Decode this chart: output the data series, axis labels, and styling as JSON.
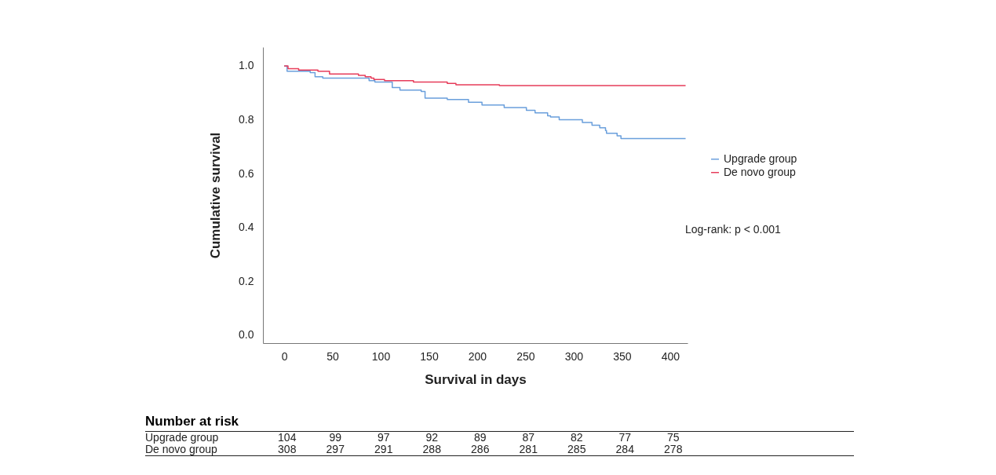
{
  "chart_data": {
    "type": "step",
    "xlabel": "Survival in days",
    "ylabel": "Cumulative survival",
    "xlim": [
      -22,
      418
    ],
    "xticks": [
      0,
      50,
      100,
      150,
      200,
      250,
      300,
      350,
      400
    ],
    "ylim": [
      -0.03,
      1.07
    ],
    "yticks": [
      {
        "value": 0,
        "label": "0.0"
      },
      {
        "value": 0.2,
        "label": "0.2"
      },
      {
        "value": 0.4,
        "label": "0.4"
      },
      {
        "value": 0.6,
        "label": "0.6"
      },
      {
        "value": 0.8,
        "label": "0.8"
      },
      {
        "value": 1,
        "label": "1.0"
      }
    ],
    "grid": false,
    "legend": "right",
    "marker": "none",
    "line_style": "solid",
    "series": [
      {
        "name": "Upgrade group",
        "color": "#6a9fdc",
        "x": [
          0,
          3,
          27,
          32,
          40,
          88,
          94,
          112,
          120,
          142,
          146,
          169,
          191,
          205,
          228,
          251,
          260,
          273,
          276,
          285,
          309,
          319,
          327,
          333,
          334,
          345,
          349,
          416
        ],
        "values": [
          1.0,
          0.98,
          0.975,
          0.96,
          0.955,
          0.945,
          0.94,
          0.92,
          0.91,
          0.905,
          0.88,
          0.875,
          0.865,
          0.855,
          0.845,
          0.835,
          0.826,
          0.815,
          0.81,
          0.8,
          0.79,
          0.78,
          0.77,
          0.76,
          0.75,
          0.74,
          0.73,
          0.73
        ]
      },
      {
        "name": "De novo group",
        "color": "#e63c5a",
        "x": [
          0,
          4,
          9,
          15,
          35,
          47,
          77,
          84,
          90,
          93,
          104,
          134,
          169,
          178,
          223,
          416
        ],
        "values": [
          1.0,
          0.99,
          0.99,
          0.985,
          0.98,
          0.97,
          0.965,
          0.96,
          0.955,
          0.95,
          0.945,
          0.94,
          0.935,
          0.93,
          0.927,
          0.927
        ]
      }
    ],
    "annotations": [
      "Log-rank: p < 0.001",
      "Number at risk",
      "Upgrade group",
      "104",
      "99",
      "97",
      "92",
      "89",
      "87",
      "82",
      "77",
      "75",
      "De novo group",
      "308",
      "297",
      "291",
      "288",
      "286",
      "281",
      "285",
      "284",
      "278"
    ]
  }
}
